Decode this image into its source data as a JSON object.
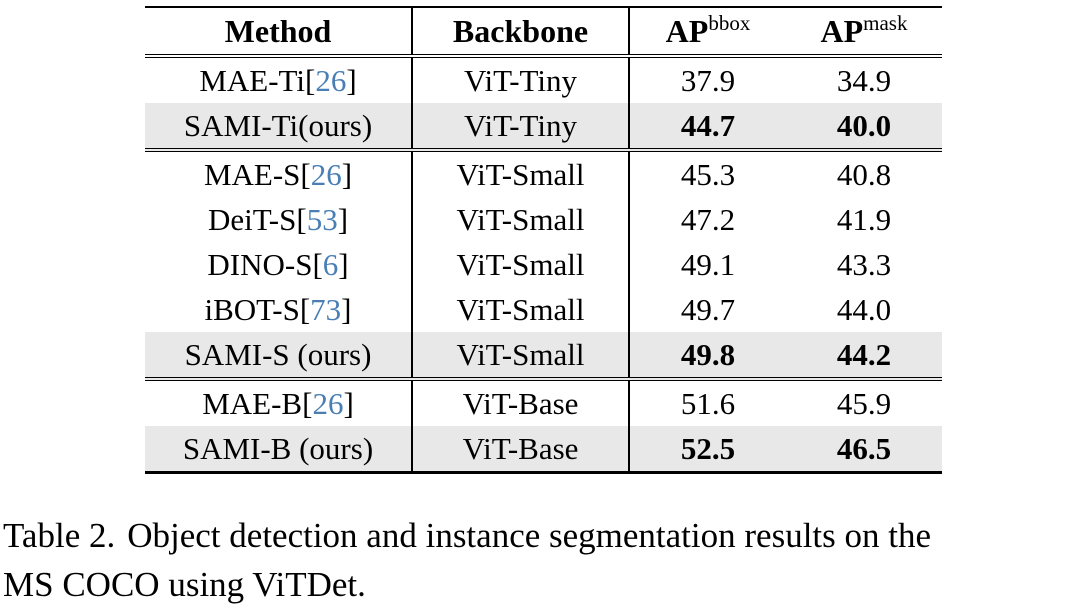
{
  "table": {
    "header": {
      "method": "Method",
      "backbone": "Backbone",
      "ap_bbox_base": "AP",
      "ap_bbox_sup": "bbox",
      "ap_mask_base": "AP",
      "ap_mask_sup": "mask"
    },
    "rows": [
      {
        "method_name": "MAE-Ti",
        "cite_open": "[",
        "cite": "26",
        "cite_close": "]",
        "backbone": "ViT-Tiny",
        "ap_bbox": "37.9",
        "ap_mask": "34.9"
      },
      {
        "method_name": "SAMI-Ti(ours)",
        "backbone": "ViT-Tiny",
        "ap_bbox": "44.7",
        "ap_mask": "40.0"
      },
      {
        "method_name": "MAE-S",
        "cite_open": "[",
        "cite": "26",
        "cite_close": "]",
        "backbone": "ViT-Small",
        "ap_bbox": "45.3",
        "ap_mask": "40.8"
      },
      {
        "method_name": "DeiT-S",
        "cite_open": "[",
        "cite": "53",
        "cite_close": "]",
        "backbone": "ViT-Small",
        "ap_bbox": "47.2",
        "ap_mask": "41.9"
      },
      {
        "method_name": "DINO-S",
        "cite_open": "[",
        "cite": "6",
        "cite_close": "]",
        "backbone": "ViT-Small",
        "ap_bbox": "49.1",
        "ap_mask": "43.3"
      },
      {
        "method_name": "iBOT-S",
        "cite_open": "[",
        "cite": "73",
        "cite_close": "]",
        "backbone": "ViT-Small",
        "ap_bbox": "49.7",
        "ap_mask": "44.0"
      },
      {
        "method_name": "SAMI-S (ours)",
        "backbone": "ViT-Small",
        "ap_bbox": "49.8",
        "ap_mask": "44.2"
      },
      {
        "method_name": "MAE-B",
        "cite_open": "[",
        "cite": "26",
        "cite_close": "]",
        "backbone": "ViT-Base",
        "ap_bbox": "51.6",
        "ap_mask": "45.9"
      },
      {
        "method_name": "SAMI-B (ours)",
        "backbone": "ViT-Base",
        "ap_bbox": "52.5",
        "ap_mask": "46.5"
      }
    ]
  },
  "caption": {
    "label": "Table 2.",
    "line1": "Object detection and instance segmentation results on the",
    "line2": "MS COCO using ViTDet."
  },
  "colors": {
    "citation_blue": "#4a7fb5",
    "highlight_gray": "#e8e8e8"
  }
}
